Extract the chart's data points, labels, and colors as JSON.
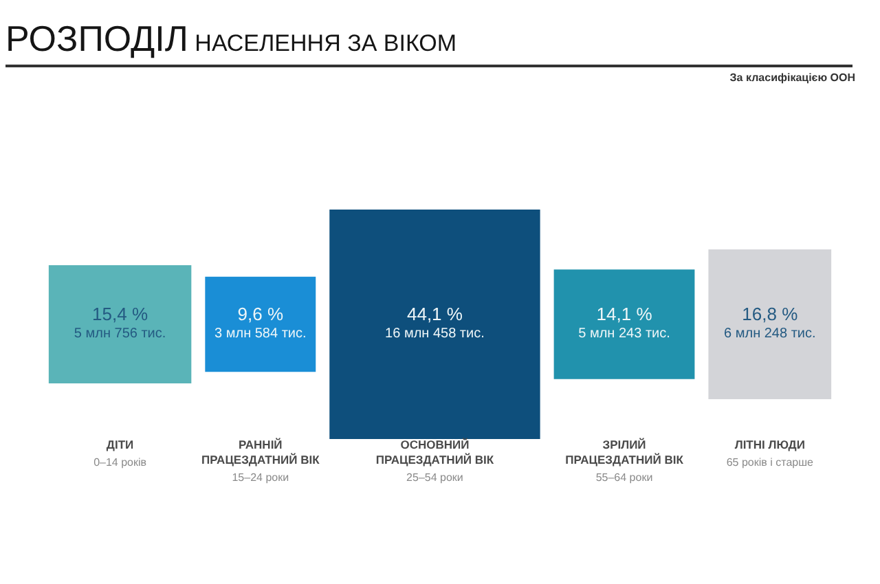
{
  "chart_data": {
    "type": "other",
    "title": "РОЗПОДІЛ НАСЕЛЕННЯ ЗА ВІКОМ",
    "annotations": [
      "За класифікацією ООН"
    ],
    "categories": [
      "ДІТИ\n0–14 років",
      "РАННІЙ ПРАЦЕЗДАТНИЙ ВІК\n15–24 роки",
      "ОСНОВНИЙ ПРАЦЕЗДАТНИЙ ВІК\n25–54 роки",
      "ЗРІЛИЙ ПРАЦЕЗДАТНИЙ ВІК\n55–64 роки",
      "ЛІТНІ ЛЮДИ\n65 років і старше"
    ],
    "values": [
      15.4,
      9.6,
      44.1,
      14.1,
      16.8
    ],
    "value_labels": [
      "15,4 %\n5 млн 756 тис.",
      "9,6 %\n3 млн 584 тис.",
      "44,1 %\n16 млн 458 тис.",
      "14,1 %\n5 млн 243 тис.",
      "16,8 %\n6 млн 248 тис."
    ],
    "colors": [
      "#5ab4b8",
      "#1a8ed6",
      "#0e4f7c",
      "#2192ad",
      "#d3d4d8"
    ]
  }
}
